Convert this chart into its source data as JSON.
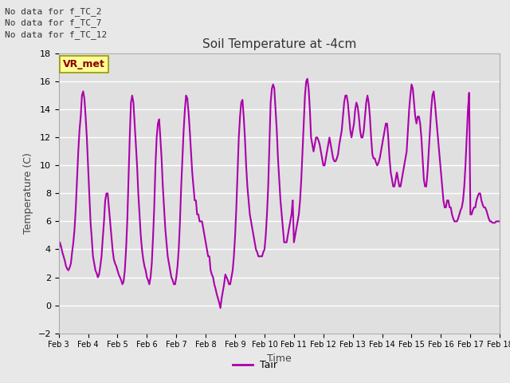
{
  "title": "Soil Temperature at -4cm",
  "xlabel": "Time",
  "ylabel": "Temperature (C)",
  "ylim": [
    -2,
    18
  ],
  "yticks": [
    -2,
    0,
    2,
    4,
    6,
    8,
    10,
    12,
    14,
    16,
    18
  ],
  "line_color": "#aa00aa",
  "line_width": 1.5,
  "outer_bg": "#e8e8e8",
  "plot_bg_color": "#e0e0e0",
  "legend_label": "Tair",
  "legend_color": "#aa00aa",
  "no_data_texts": [
    "No data for f_TC_2",
    "No data for f_TC_7",
    "No data for f_TC_12"
  ],
  "xtick_labels": [
    "Feb 3",
    "Feb 4",
    "Feb 5",
    "Feb 6",
    "Feb 7",
    "Feb 8",
    "Feb 9",
    "Feb 10",
    "Feb 11",
    "Feb 12",
    "Feb 13",
    "Feb 14",
    "Feb 15",
    "Feb 16",
    "Feb 17",
    "Feb 18"
  ],
  "time_values": [
    3,
    4,
    5,
    6,
    7,
    8,
    9,
    10,
    11,
    12,
    13,
    14,
    15,
    16,
    17,
    18
  ],
  "data_x": [
    3.0,
    3.042,
    3.083,
    3.125,
    3.167,
    3.208,
    3.25,
    3.292,
    3.333,
    3.375,
    3.417,
    3.458,
    3.5,
    3.542,
    3.583,
    3.625,
    3.667,
    3.708,
    3.75,
    3.792,
    3.833,
    3.875,
    3.917,
    3.958,
    4.0,
    4.042,
    4.083,
    4.125,
    4.167,
    4.208,
    4.25,
    4.292,
    4.333,
    4.375,
    4.417,
    4.458,
    4.5,
    4.542,
    4.583,
    4.625,
    4.667,
    4.708,
    4.75,
    4.792,
    4.833,
    4.875,
    4.917,
    4.958,
    5.0,
    5.042,
    5.083,
    5.125,
    5.167,
    5.208,
    5.25,
    5.292,
    5.333,
    5.375,
    5.417,
    5.458,
    5.5,
    5.542,
    5.583,
    5.625,
    5.667,
    5.708,
    5.75,
    5.792,
    5.833,
    5.875,
    5.917,
    5.958,
    6.0,
    6.042,
    6.083,
    6.125,
    6.167,
    6.208,
    6.25,
    6.292,
    6.333,
    6.375,
    6.417,
    6.458,
    6.5,
    6.542,
    6.583,
    6.625,
    6.667,
    6.708,
    6.75,
    6.792,
    6.833,
    6.875,
    6.917,
    6.958,
    7.0,
    7.042,
    7.083,
    7.125,
    7.167,
    7.208,
    7.25,
    7.292,
    7.333,
    7.375,
    7.417,
    7.458,
    7.5,
    7.542,
    7.583,
    7.625,
    7.667,
    7.708,
    7.75,
    7.792,
    7.833,
    7.875,
    7.917,
    7.958,
    8.0,
    8.042,
    8.083,
    8.125,
    8.167,
    8.208,
    8.25,
    8.292,
    8.333,
    8.375,
    8.417,
    8.458,
    8.5,
    8.542,
    8.583,
    8.625,
    8.667,
    8.708,
    8.75,
    8.792,
    8.833,
    8.875,
    8.917,
    8.958,
    9.0,
    9.042,
    9.083,
    9.125,
    9.167,
    9.208,
    9.25,
    9.292,
    9.333,
    9.375,
    9.417,
    9.458,
    9.5,
    9.542,
    9.583,
    9.625,
    9.667,
    9.708,
    9.75,
    9.792,
    9.833,
    9.875,
    9.917,
    9.958,
    10.0,
    10.042,
    10.083,
    10.125,
    10.167,
    10.208,
    10.25,
    10.292,
    10.333,
    10.375,
    10.417,
    10.458,
    10.5,
    10.542,
    10.583,
    10.625,
    10.667,
    10.708,
    10.75,
    10.792,
    10.833,
    10.875,
    10.917,
    10.958,
    11.0,
    11.042,
    11.083,
    11.125,
    11.167,
    11.208,
    11.25,
    11.292,
    11.333,
    11.375,
    11.417,
    11.458,
    11.5,
    11.542,
    11.583,
    11.625,
    11.667,
    11.708,
    11.75,
    11.792,
    11.833,
    11.875,
    11.917,
    11.958,
    12.0,
    12.042,
    12.083,
    12.125,
    12.167,
    12.208,
    12.25,
    12.292,
    12.333,
    12.375,
    12.417,
    12.458,
    12.5,
    12.542,
    12.583,
    12.625,
    12.667,
    12.708,
    12.75,
    12.792,
    12.833,
    12.875,
    12.917,
    12.958,
    13.0,
    13.042,
    13.083,
    13.125,
    13.167,
    13.208,
    13.25,
    13.292,
    13.333,
    13.375,
    13.417,
    13.458,
    13.5,
    13.542,
    13.583,
    13.625,
    13.667,
    13.708,
    13.75,
    13.792,
    13.833,
    13.875,
    13.917,
    13.958,
    14.0,
    14.042,
    14.083,
    14.125,
    14.167,
    14.208,
    14.25,
    14.292,
    14.333,
    14.375,
    14.417,
    14.458,
    14.5,
    14.542,
    14.583,
    14.625,
    14.667,
    14.708,
    14.75,
    14.792,
    14.833,
    14.875,
    14.917,
    14.958,
    15.0,
    15.042,
    15.083,
    15.125,
    15.167,
    15.208,
    15.25,
    15.292,
    15.333,
    15.375,
    15.417,
    15.458,
    15.5,
    15.542,
    15.583,
    15.625,
    15.667,
    15.708,
    15.75,
    15.792,
    15.833,
    15.875,
    15.917,
    15.958,
    16.0,
    16.042,
    16.083,
    16.125,
    16.167,
    16.208,
    16.25,
    16.292,
    16.333,
    16.375,
    16.417,
    16.458,
    16.5,
    16.542,
    16.583,
    16.625,
    16.667,
    16.708,
    16.75,
    16.792,
    16.833,
    16.875,
    16.917,
    16.958,
    17.0,
    17.042,
    17.083,
    17.125,
    17.167,
    17.208,
    17.25,
    17.292,
    17.333,
    17.375,
    17.417,
    17.458,
    17.5,
    17.542,
    17.583,
    17.625,
    17.667,
    17.708,
    17.75,
    17.792,
    17.833,
    17.875,
    17.917,
    17.958,
    18.0
  ],
  "data_y": [
    4.0,
    4.5,
    4.2,
    3.8,
    3.5,
    3.2,
    2.8,
    2.6,
    2.5,
    2.7,
    3.0,
    3.8,
    4.5,
    5.5,
    7.0,
    9.0,
    11.0,
    12.5,
    13.5,
    15.0,
    15.3,
    14.8,
    13.5,
    12.0,
    10.0,
    8.0,
    6.0,
    4.8,
    3.5,
    3.0,
    2.5,
    2.3,
    2.0,
    2.2,
    2.8,
    3.5,
    4.8,
    6.0,
    7.5,
    8.0,
    8.0,
    7.0,
    6.0,
    5.0,
    4.0,
    3.3,
    3.0,
    2.8,
    2.5,
    2.2,
    2.0,
    1.8,
    1.5,
    1.7,
    2.5,
    4.0,
    6.0,
    9.0,
    12.0,
    14.5,
    15.0,
    14.5,
    13.0,
    11.5,
    10.0,
    8.0,
    6.5,
    5.0,
    4.0,
    3.3,
    2.8,
    2.5,
    2.0,
    1.8,
    1.5,
    2.0,
    3.0,
    4.8,
    7.0,
    10.0,
    12.0,
    13.0,
    13.3,
    12.0,
    10.5,
    8.5,
    7.0,
    5.5,
    4.5,
    3.5,
    3.0,
    2.5,
    2.0,
    1.8,
    1.5,
    1.5,
    2.0,
    2.8,
    4.0,
    6.0,
    8.5,
    10.5,
    12.5,
    14.0,
    15.0,
    14.8,
    13.8,
    12.5,
    11.0,
    9.5,
    8.5,
    7.5,
    7.5,
    6.5,
    6.5,
    6.0,
    6.0,
    6.0,
    5.5,
    5.0,
    4.5,
    4.0,
    3.5,
    3.5,
    2.5,
    2.2,
    2.0,
    1.5,
    1.2,
    0.8,
    0.5,
    0.2,
    -0.2,
    0.5,
    1.0,
    1.5,
    2.2,
    2.0,
    1.8,
    1.5,
    1.5,
    2.0,
    2.5,
    3.5,
    5.0,
    7.0,
    9.5,
    12.0,
    13.5,
    14.5,
    14.7,
    13.5,
    12.0,
    10.0,
    8.5,
    7.5,
    6.5,
    6.0,
    5.5,
    5.0,
    4.5,
    4.0,
    3.8,
    3.5,
    3.5,
    3.5,
    3.5,
    3.8,
    4.0,
    5.0,
    6.5,
    8.5,
    11.5,
    14.5,
    15.5,
    15.8,
    15.5,
    14.0,
    12.5,
    10.5,
    9.0,
    7.5,
    6.5,
    5.5,
    4.5,
    4.5,
    4.5,
    5.0,
    5.5,
    6.0,
    6.5,
    7.5,
    4.5,
    5.0,
    5.5,
    6.0,
    6.5,
    7.5,
    9.0,
    11.0,
    13.0,
    15.0,
    16.0,
    16.2,
    15.5,
    14.0,
    12.0,
    11.5,
    11.0,
    11.5,
    12.0,
    12.0,
    11.8,
    11.5,
    11.0,
    10.5,
    10.0,
    10.0,
    10.5,
    11.0,
    11.5,
    12.0,
    11.5,
    11.0,
    10.5,
    10.3,
    10.3,
    10.5,
    10.8,
    11.5,
    12.0,
    12.5,
    13.5,
    14.5,
    15.0,
    15.0,
    14.5,
    13.5,
    12.5,
    12.0,
    12.5,
    13.0,
    14.0,
    14.5,
    14.2,
    13.5,
    12.5,
    12.0,
    12.0,
    12.5,
    13.5,
    14.5,
    15.0,
    14.5,
    13.5,
    12.0,
    10.8,
    10.5,
    10.5,
    10.2,
    10.0,
    10.2,
    10.5,
    11.0,
    11.5,
    12.0,
    12.5,
    13.0,
    13.0,
    12.0,
    10.5,
    9.5,
    9.0,
    8.5,
    8.5,
    9.0,
    9.5,
    9.0,
    8.5,
    8.5,
    9.0,
    9.5,
    10.0,
    10.5,
    11.0,
    12.5,
    14.0,
    15.0,
    15.8,
    15.5,
    14.5,
    13.5,
    13.0,
    13.5,
    13.5,
    13.0,
    12.0,
    10.5,
    9.0,
    8.5,
    8.5,
    9.5,
    11.0,
    12.5,
    14.0,
    15.0,
    15.3,
    14.5,
    13.5,
    12.5,
    11.5,
    10.5,
    9.5,
    8.5,
    7.5,
    7.0,
    7.0,
    7.5,
    7.5,
    7.0,
    7.0,
    6.5,
    6.2,
    6.0,
    6.0,
    6.0,
    6.2,
    6.5,
    6.8,
    7.0,
    7.5,
    8.5,
    10.0,
    12.0,
    14.0,
    15.2,
    6.5,
    6.5,
    6.8,
    7.0,
    7.0,
    7.5,
    7.8,
    8.0,
    8.0,
    7.5,
    7.2,
    7.0,
    7.0,
    6.8,
    6.5,
    6.2,
    6.0,
    6.0,
    5.9,
    5.9,
    5.9,
    6.0,
    6.0,
    6.0,
    6.0
  ]
}
